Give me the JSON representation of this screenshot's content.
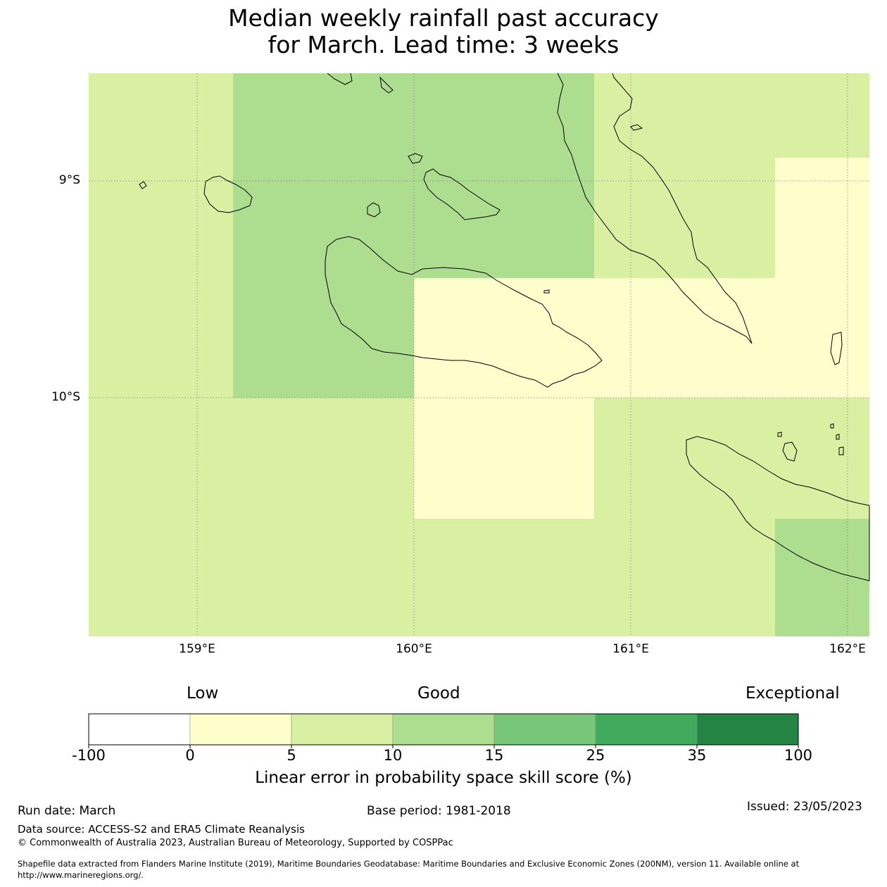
{
  "title": {
    "line1": "Median weekly rainfall past accuracy",
    "line2": "for March. Lead time: 3 weeks"
  },
  "map": {
    "lon_range": [
      158.5,
      162.1
    ],
    "lat_range": [
      -8.5,
      -11.1
    ],
    "lat_labels": [
      "9°S",
      "10°S"
    ],
    "lon_labels": [
      "159°E",
      "160°E",
      "161°E",
      "162°E"
    ],
    "coastline_icon": "coastline-outline"
  },
  "skill_grid": {
    "description_values": "skill score category (%) per grid block",
    "blocks": [
      {
        "lon": [
          158.5,
          159.17
        ],
        "lat": [
          -8.5,
          -11.1
        ],
        "category": "5-10"
      },
      {
        "lon": [
          159.17,
          160.83
        ],
        "lat": [
          -8.5,
          -10.0
        ],
        "category": "10-15"
      },
      {
        "lon": [
          160.0,
          160.83
        ],
        "lat": [
          -9.45,
          -10.0
        ],
        "category": "0-5"
      },
      {
        "lon": [
          160.0,
          160.83
        ],
        "lat": [
          -10.0,
          -10.56
        ],
        "category": "0-5"
      },
      {
        "lon": [
          160.83,
          161.67
        ],
        "lat": [
          -9.45,
          -10.0
        ],
        "category": "0-5"
      },
      {
        "lon": [
          161.67,
          162.1
        ],
        "lat": [
          -8.89,
          -10.0
        ],
        "category": "0-5"
      },
      {
        "lon": [
          161.67,
          162.1
        ],
        "lat": [
          -10.56,
          -11.1
        ],
        "category": "10-15"
      }
    ]
  },
  "colorbar": {
    "categories": [
      "Low",
      "Good",
      "Exceptional"
    ],
    "ticks": [
      "-100",
      "0",
      "5",
      "10",
      "15",
      "25",
      "35",
      "100"
    ],
    "colors": [
      "#ffffff",
      "#fefecc",
      "#d9f0a3",
      "#addd8e",
      "#78c679",
      "#41ab5d",
      "#238443"
    ],
    "label": "Linear error in probability space skill score (%)"
  },
  "footer": {
    "run_date": "Run date: March",
    "base_period": "Base period: 1981-2018",
    "issued": "Issued: 23/05/2023",
    "data_source": "Data source: ACCESS-S2 and ERA5 Climate Reanalysis",
    "copyright": "© Commonwealth of Australia 2023, Australian Bureau of Meteorology, Supported by COSPPac",
    "shapefile_line1": "Shapefile data extracted from Flanders Marine Institute (2019), Maritime Boundaries Geodatabase: Maritime Boundaries and Exclusive Economic Zones (200NM), version 11. Available online at",
    "shapefile_line2": "http://www.marineregions.org/."
  }
}
